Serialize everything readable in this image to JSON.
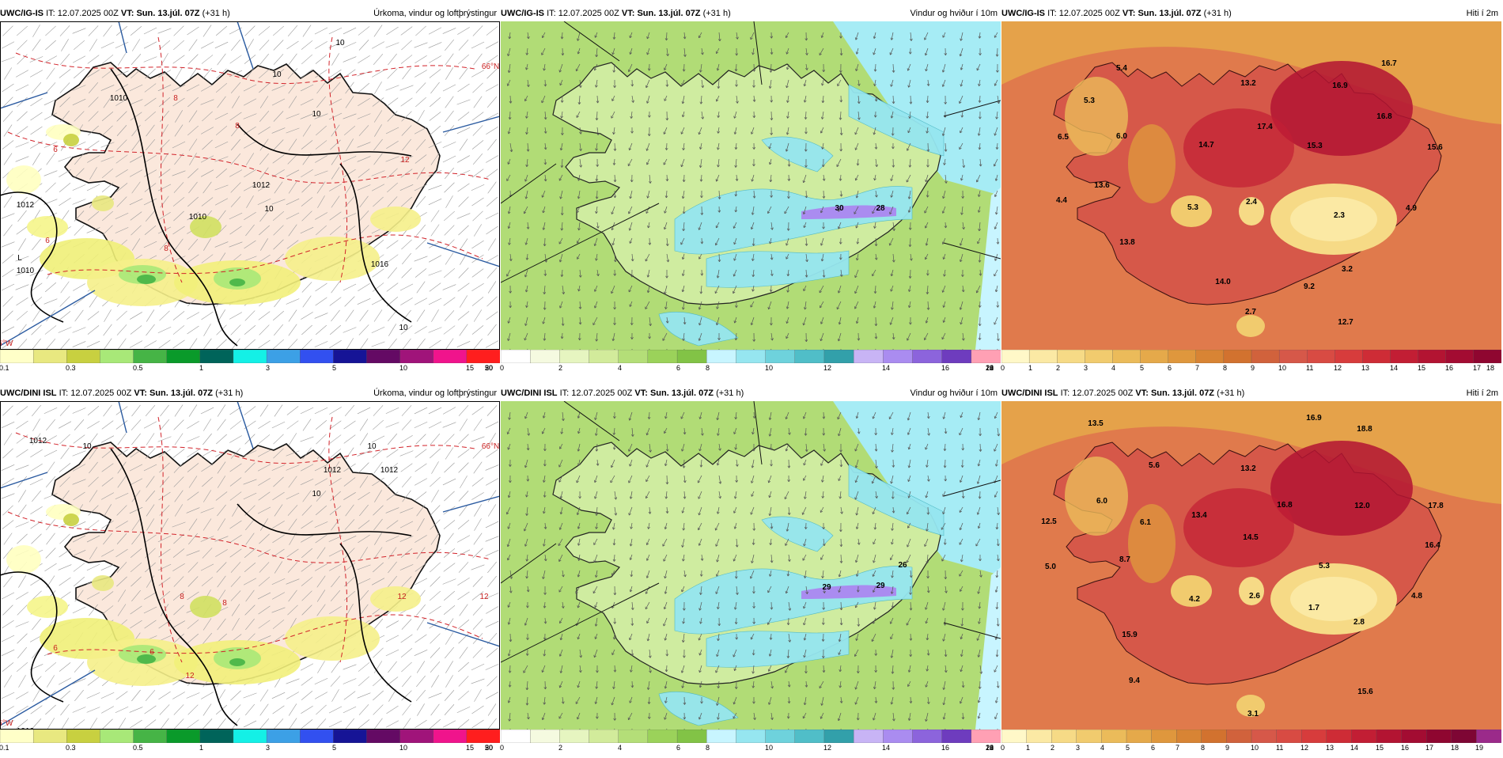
{
  "panels": [
    {
      "id": "r0c0",
      "kind": "precip",
      "show_box": true,
      "model": "UWC/IG-IS",
      "it_label": "IT:",
      "it_value": "12.07.2025 00Z",
      "vt_label": "VT:",
      "vt_value": "Sun. 13.júl. 07Z",
      "lead": "(+31 h)",
      "title": "Úrkoma, vindur og loftþrýstingur",
      "colorbar": {
        "colors": [
          "#ffffc8",
          "#e8e880",
          "#c8d040",
          "#a8e878",
          "#46b446",
          "#0a9a2a",
          "#00645a",
          "#14f0e6",
          "#3ca0e6",
          "#3250f0",
          "#161496",
          "#640a64",
          "#a0147a",
          "#f0148c",
          "#ff1e1e"
        ],
        "labels": [
          "0.1",
          "0.3",
          "0.5",
          "1",
          "3",
          "5",
          "10",
          "15",
          "20",
          "30",
          "50"
        ],
        "label_slots": [
          0,
          2,
          4,
          6,
          8,
          10,
          12,
          14,
          16,
          18,
          20
        ]
      },
      "map_labels": [
        "1010",
        "1012",
        "1012",
        "1016",
        "1010",
        "10",
        "10",
        "8",
        "8",
        "6",
        "6",
        "12",
        "10",
        "10",
        "8",
        "10",
        "L",
        "1010",
        "16°W",
        "66°N"
      ]
    },
    {
      "id": "r0c1",
      "kind": "wind",
      "show_box": false,
      "model": "UWC/IG-IS",
      "it_label": "IT:",
      "it_value": "12.07.2025 00Z",
      "vt_label": "VT:",
      "vt_value": "Sun. 13.júl. 07Z",
      "lead": "(+31 h)",
      "title": "Vindur og hviður í 10m",
      "colorbar": {
        "colors": [
          "#ffffff",
          "#f5fae0",
          "#e6f5c0",
          "#d2eb9b",
          "#b4de78",
          "#9bd25a",
          "#82c346",
          "#c8f5ff",
          "#96e6f0",
          "#6ed2dc",
          "#50bec8",
          "#32a0aa",
          "#c8b4f5",
          "#aa8cf0",
          "#8c64dc",
          "#6e3cbe",
          "#ffa0b4"
        ],
        "labels": [
          "0",
          "2",
          "4",
          "6",
          "8",
          "10",
          "12",
          "14",
          "16",
          "18",
          "20",
          "22",
          "24"
        ],
        "label_slots": [
          0,
          2,
          4,
          6,
          7,
          9,
          11,
          13,
          15,
          17,
          19,
          21,
          23
        ]
      },
      "map_labels": [
        "30",
        "28"
      ]
    },
    {
      "id": "r0c2",
      "kind": "temp",
      "show_box": false,
      "model": "UWC/IG-IS",
      "it_label": "IT:",
      "it_value": "12.07.2025 00Z",
      "vt_label": "VT:",
      "vt_value": "Sun. 13.júl. 07Z",
      "lead": "(+31 h)",
      "title": "Hiti í 2m",
      "colorbar": {
        "colors": [
          "#fff8c8",
          "#fbe9a4",
          "#f6da86",
          "#f1cb6e",
          "#ebbb5a",
          "#e5a94a",
          "#df973d",
          "#d88434",
          "#d2722f",
          "#d1623c",
          "#d65849",
          "#d84b43",
          "#d73c3c",
          "#ce2c36",
          "#c21e34",
          "#b31432",
          "#a30c32",
          "#8f0630"
        ],
        "labels": [
          "0",
          "1",
          "2",
          "3",
          "4",
          "5",
          "6",
          "7",
          "8",
          "9",
          "10",
          "11",
          "12",
          "13",
          "14",
          "15",
          "16",
          "17",
          "18"
        ],
        "label_slots": [
          0,
          1,
          2,
          3,
          4,
          5,
          6,
          7,
          8,
          9,
          10,
          11,
          12,
          13,
          14,
          15,
          16,
          17,
          18
        ]
      },
      "map_labels": [
        "5.4",
        "16.7",
        "13.2",
        "16.9",
        "5.3",
        "6.5",
        "6.0",
        "17.4",
        "16.8",
        "14.7",
        "15.3",
        "15.6",
        "13.6",
        "4.4",
        "5.3",
        "2.4",
        "2.3",
        "4.9",
        "13.8",
        "3.2",
        "14.0",
        "9.2",
        "2.7",
        "12.7"
      ]
    },
    {
      "id": "r1c0",
      "kind": "precip",
      "show_box": true,
      "model": "UWC/DINI ISL",
      "it_label": "IT:",
      "it_value": "12.07.2025 00Z",
      "vt_label": "VT:",
      "vt_value": "Sun. 13.júl. 07Z",
      "lead": "(+31 h)",
      "title": "Úrkoma, vindur og loftþrýstingur",
      "colorbar": {
        "colors": [
          "#ffffc8",
          "#e8e880",
          "#c8d040",
          "#a8e878",
          "#46b446",
          "#0a9a2a",
          "#00645a",
          "#14f0e6",
          "#3ca0e6",
          "#3250f0",
          "#161496",
          "#640a64",
          "#a0147a",
          "#f0148c",
          "#ff1e1e"
        ],
        "labels": [
          "0.1",
          "0.3",
          "0.5",
          "1",
          "3",
          "5",
          "10",
          "15",
          "20",
          "30",
          "50"
        ],
        "label_slots": [
          0,
          2,
          4,
          6,
          8,
          10,
          12,
          14,
          16,
          18,
          20
        ]
      },
      "map_labels": [
        "1012",
        "1012",
        "1012",
        "1010",
        "10",
        "10",
        "12",
        "12",
        "10",
        "8",
        "8",
        "6",
        "6",
        "12",
        "16°W",
        "66°N"
      ]
    },
    {
      "id": "r1c1",
      "kind": "wind",
      "show_box": false,
      "model": "UWC/DINI ISL",
      "it_label": "IT:",
      "it_value": "12.07.2025 00Z",
      "vt_label": "VT:",
      "vt_value": "Sun. 13.júl. 07Z",
      "lead": "(+31 h)",
      "title": "Vindur og hviður í 10m",
      "colorbar": {
        "colors": [
          "#ffffff",
          "#f5fae0",
          "#e6f5c0",
          "#d2eb9b",
          "#b4de78",
          "#9bd25a",
          "#82c346",
          "#c8f5ff",
          "#96e6f0",
          "#6ed2dc",
          "#50bec8",
          "#32a0aa",
          "#c8b4f5",
          "#aa8cf0",
          "#8c64dc",
          "#6e3cbe",
          "#ffa0b4"
        ],
        "labels": [
          "0",
          "2",
          "4",
          "6",
          "8",
          "10",
          "12",
          "14",
          "16",
          "18",
          "20",
          "22",
          "24"
        ],
        "label_slots": [
          0,
          2,
          4,
          6,
          7,
          9,
          11,
          13,
          15,
          17,
          19,
          21,
          23
        ]
      },
      "map_labels": [
        "29",
        "29",
        "26"
      ]
    },
    {
      "id": "r1c2",
      "kind": "temp",
      "show_box": false,
      "model": "UWC/DINI ISL",
      "it_label": "IT:",
      "it_value": "12.07.2025 00Z",
      "vt_label": "VT:",
      "vt_value": "Sun. 13.júl. 07Z",
      "lead": "(+31 h)",
      "title": "Hiti í 2m",
      "colorbar": {
        "colors": [
          "#fff8c8",
          "#fbe9a4",
          "#f6da86",
          "#f1cb6e",
          "#ebbb5a",
          "#e5a94a",
          "#df973d",
          "#d88434",
          "#d2722f",
          "#d1623c",
          "#d65849",
          "#d84b43",
          "#d73c3c",
          "#ce2c36",
          "#c21e34",
          "#b31432",
          "#a30c32",
          "#8f0630",
          "#7e0634",
          "#9b2a8a"
        ],
        "labels": [
          "0",
          "1",
          "2",
          "3",
          "4",
          "5",
          "6",
          "7",
          "8",
          "9",
          "10",
          "11",
          "12",
          "13",
          "14",
          "15",
          "16",
          "17",
          "18",
          "19"
        ],
        "label_slots": [
          0,
          1,
          2,
          3,
          4,
          5,
          6,
          7,
          8,
          9,
          10,
          11,
          12,
          13,
          14,
          15,
          16,
          17,
          18,
          19
        ]
      },
      "map_labels": [
        "13.5",
        "16.9",
        "18.8",
        "5.6",
        "13.2",
        "6.0",
        "16.8",
        "12.0",
        "17.8",
        "12.5",
        "6.1",
        "13.4",
        "14.5",
        "16.4",
        "8.7",
        "5.3",
        "5.0",
        "4.2",
        "2.6",
        "1.7",
        "4.8",
        "2.8",
        "15.9",
        "9.4",
        "15.6",
        "3.1"
      ]
    }
  ]
}
